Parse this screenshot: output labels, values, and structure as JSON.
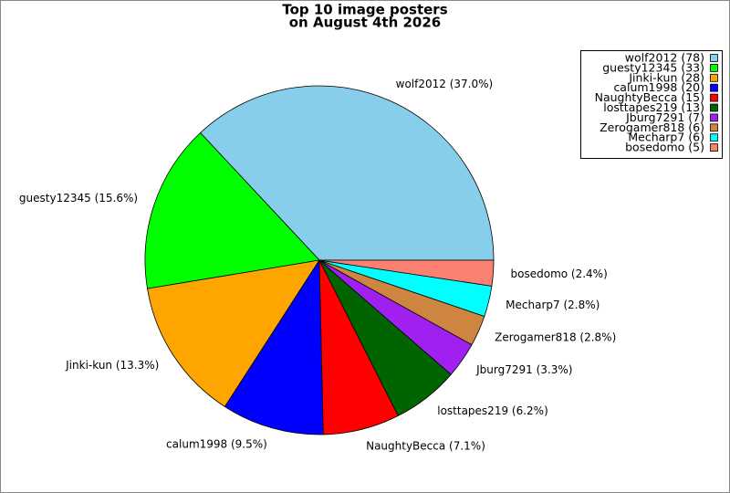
{
  "chart_data": {
    "type": "pie",
    "title": [
      "Top 10 image posters",
      "on August 4th 2026"
    ],
    "categories": [
      "wolf2012 (78)",
      "guesty12345 (33)",
      "Jinki-kun (28)",
      "calum1998 (20)",
      "NaughtyBecca (15)",
      "losttapes219 (13)",
      "Jburg7291 (7)",
      "Zerogamer818 (6)",
      "Mecharp7 (6)",
      "bosedomo (5)"
    ],
    "values": [
      78,
      33,
      28,
      20,
      15,
      13,
      7,
      6,
      6,
      5
    ],
    "value_labels": [
      "wolf2012 (37.0%)",
      "guesty12345 (15.6%)",
      "Jinki-kun (13.3%)",
      "calum1998 (9.5%)",
      "NaughtyBecca (7.1%)",
      "losttapes219 (6.2%)",
      "Jburg7291 (3.3%)",
      "Zerogamer818 (2.8%)",
      "Mecharp7 (2.8%)",
      "bosedomo (2.4%)"
    ],
    "colors": [
      "#87ceeb",
      "#00ff00",
      "#ffa500",
      "#0000ff",
      "#ff0000",
      "#006400",
      "#a020f0",
      "#cd853f",
      "#00ffff",
      "#fa8072"
    ],
    "legend": "upper right"
  }
}
